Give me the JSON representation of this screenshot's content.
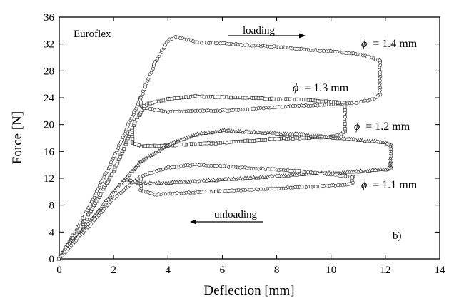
{
  "chart_data": {
    "type": "scatter",
    "title": "",
    "xlabel": "Deflection  [mm]",
    "ylabel": "Force  [N]",
    "xlim": [
      0,
      14
    ],
    "ylim": [
      0,
      36
    ],
    "xticks": [
      0,
      2,
      4,
      6,
      8,
      10,
      12,
      14
    ],
    "yticks": [
      0,
      4,
      8,
      12,
      16,
      20,
      24,
      28,
      32,
      36
    ],
    "xtick_labels": [
      "0",
      "2",
      "4",
      "6",
      "8",
      "10",
      "12",
      "14"
    ],
    "ytick_labels": [
      "0",
      "4",
      "8",
      "12",
      "16",
      "20",
      "24",
      "28",
      "32",
      "36"
    ],
    "grid": false,
    "annotations": {
      "material": "Euroflex",
      "loading": "loading",
      "unloading": "unloading",
      "panel": "b)"
    },
    "series": [
      {
        "name": "ϕ = 1.4 mm",
        "label_symbol": "ϕ",
        "label_value": "= 1.4 mm",
        "marker": "circle",
        "loading": {
          "x": [
            0,
            1,
            2,
            3,
            3.5,
            4,
            4.3,
            5,
            6,
            7,
            8,
            9,
            10,
            11,
            11.5,
            11.8
          ],
          "y": [
            0,
            7,
            15,
            24,
            29,
            32.5,
            33.1,
            32.3,
            32.1,
            31.8,
            31.6,
            31.2,
            30.9,
            30.5,
            30,
            29.5
          ]
        },
        "unloading": {
          "x": [
            11.8,
            11.6,
            11,
            10,
            9,
            8,
            7,
            6,
            5,
            4,
            3.5,
            3
          ],
          "y": [
            24.5,
            23.8,
            23.3,
            23,
            22.8,
            22.6,
            22.3,
            22.1,
            22,
            21.9,
            22.2,
            22.8
          ]
        }
      },
      {
        "name": "ϕ = 1.3 mm",
        "label_symbol": "ϕ",
        "label_value": "= 1.3 mm",
        "marker": "square",
        "loading": {
          "x": [
            0,
            1,
            2,
            2.8,
            3.2,
            4,
            5,
            6,
            7,
            8,
            9,
            10,
            10.5
          ],
          "y": [
            0,
            6,
            13,
            20.5,
            23,
            23.8,
            24.2,
            24.1,
            24,
            23.8,
            23.7,
            23.4,
            23.2
          ]
        },
        "unloading": {
          "x": [
            10.5,
            10.3,
            10,
            9,
            8,
            7,
            6,
            5,
            4,
            3,
            2.7
          ],
          "y": [
            19,
            18.4,
            18.2,
            18,
            17.9,
            17.6,
            17.3,
            17.1,
            16.9,
            16.8,
            17.3
          ]
        }
      },
      {
        "name": "ϕ = 1.2 mm",
        "label_symbol": "ϕ",
        "label_value": "= 1.2 mm",
        "marker": "triangle",
        "loading": {
          "x": [
            0,
            1,
            2,
            3,
            4,
            5,
            6,
            7,
            8,
            9,
            10,
            11,
            12,
            12.2
          ],
          "y": [
            0,
            5,
            10,
            14.5,
            17,
            18.5,
            19.1,
            18.9,
            18.7,
            18.5,
            18.1,
            17.7,
            17.3,
            17
          ]
        },
        "unloading": {
          "x": [
            12.2,
            12,
            11,
            10,
            9,
            8,
            7,
            6,
            5,
            4,
            3,
            2.5
          ],
          "y": [
            13.6,
            13.3,
            13,
            12.8,
            12.6,
            12.3,
            12,
            11.8,
            11.5,
            11.3,
            11.2,
            11.8
          ]
        }
      },
      {
        "name": "ϕ = 1.1 mm",
        "label_symbol": "ϕ",
        "label_value": "= 1.1 mm",
        "marker": "circle",
        "loading": {
          "x": [
            0,
            1,
            2,
            3,
            4,
            5,
            6,
            7,
            8,
            9,
            10,
            10.8
          ],
          "y": [
            0,
            4.5,
            9,
            12.3,
            13.6,
            14,
            13.8,
            13.5,
            13.3,
            13,
            12.6,
            12.2
          ]
        },
        "unloading": {
          "x": [
            10.8,
            10.5,
            10,
            9,
            8,
            7,
            6,
            5,
            4,
            3.5,
            3
          ],
          "y": [
            11.3,
            11,
            10.9,
            10.7,
            10.5,
            10.3,
            10.1,
            9.9,
            9.7,
            9.6,
            10.2
          ]
        }
      }
    ]
  }
}
